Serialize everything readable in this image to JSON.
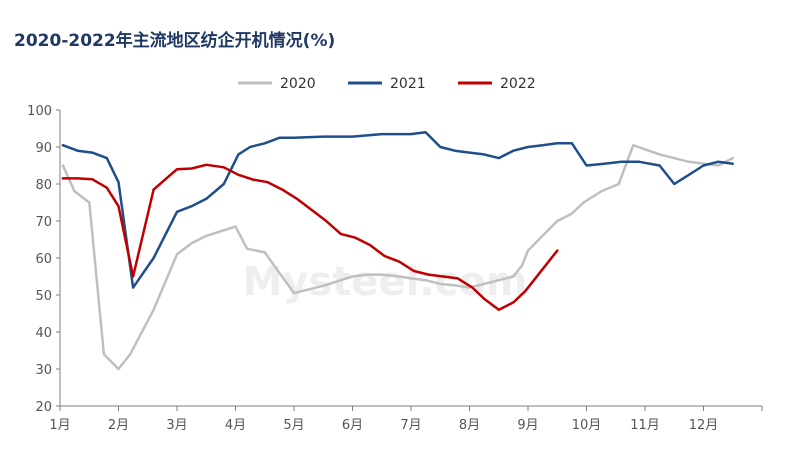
{
  "chart_data": {
    "type": "line",
    "title": "2020-2022年主流地区纺企开机情况(%)",
    "ylim": [
      20,
      100
    ],
    "yticks": [
      20,
      30,
      40,
      50,
      60,
      70,
      80,
      90,
      100
    ],
    "xlim": [
      1,
      13
    ],
    "xtick_labels": [
      "1月",
      "2月",
      "3月",
      "4月",
      "5月",
      "6月",
      "7月",
      "8月",
      "9月",
      "10月",
      "11月",
      "12月"
    ],
    "legend_position": "top-center",
    "watermark": "Mysteel.com",
    "series": [
      {
        "name": "2020",
        "color": "#bfbfbf",
        "x": [
          1.05,
          1.25,
          1.5,
          1.75,
          2.0,
          2.2,
          2.6,
          3.0,
          3.25,
          3.5,
          3.8,
          4.0,
          4.2,
          4.5,
          4.75,
          5.0,
          5.25,
          5.5,
          5.8,
          6.0,
          6.25,
          6.5,
          6.8,
          7.0,
          7.25,
          7.5,
          7.8,
          8.0,
          8.25,
          8.5,
          8.75,
          8.9,
          9.0,
          9.25,
          9.5,
          9.75,
          9.95,
          10.25,
          10.55,
          10.8,
          11.25,
          11.75,
          12.25,
          12.5
        ],
        "values": [
          85,
          78,
          75,
          34,
          30,
          34,
          46,
          61,
          64,
          66,
          67.5,
          68.5,
          62.5,
          61.5,
          56,
          50.5,
          51.5,
          52.5,
          54,
          55,
          55.5,
          55.5,
          55,
          54.5,
          54,
          53,
          52.5,
          52,
          53,
          54,
          55,
          58,
          62,
          66,
          70,
          72,
          75,
          78,
          80,
          90.5,
          88,
          86,
          85,
          87
        ]
      },
      {
        "name": "2021",
        "color": "#1f4e8c",
        "x": [
          1.05,
          1.3,
          1.55,
          1.8,
          2.0,
          2.25,
          2.6,
          3.0,
          3.25,
          3.5,
          3.8,
          4.05,
          4.25,
          4.5,
          4.75,
          5.0,
          5.5,
          6.0,
          6.5,
          7.0,
          7.25,
          7.5,
          7.75,
          8.0,
          8.25,
          8.5,
          8.75,
          9.0,
          9.25,
          9.5,
          9.75,
          10.0,
          10.3,
          10.6,
          10.9,
          11.25,
          11.5,
          11.75,
          12.0,
          12.25,
          12.5
        ],
        "values": [
          90.5,
          89,
          88.5,
          87,
          80.5,
          52,
          60,
          72.5,
          74,
          76,
          80,
          88,
          90,
          91,
          92.5,
          92.5,
          92.8,
          92.8,
          93.5,
          93.5,
          94,
          90,
          89,
          88.5,
          88,
          87,
          89,
          90,
          90.5,
          91,
          91,
          85,
          85.5,
          86,
          86,
          85,
          80,
          82.5,
          85,
          86,
          85.5
        ]
      },
      {
        "name": "2022",
        "color": "#c00000",
        "x": [
          1.05,
          1.3,
          1.55,
          1.8,
          2.0,
          2.25,
          2.6,
          3.0,
          3.25,
          3.5,
          3.8,
          4.05,
          4.3,
          4.55,
          4.8,
          5.05,
          5.3,
          5.55,
          5.8,
          6.05,
          6.3,
          6.55,
          6.8,
          7.05,
          7.3,
          7.55,
          7.8,
          8.05,
          8.25,
          8.5,
          8.75,
          8.95,
          9.2,
          9.5
        ],
        "values": [
          81.5,
          81.5,
          81.3,
          79,
          74,
          55,
          78.5,
          84,
          84.2,
          85.2,
          84.5,
          82.5,
          81.2,
          80.5,
          78.5,
          76,
          73,
          70,
          66.5,
          65.5,
          63.5,
          60.5,
          59,
          56.5,
          55.5,
          55,
          54.5,
          52,
          49,
          46,
          48,
          51,
          56,
          62
        ]
      }
    ]
  }
}
